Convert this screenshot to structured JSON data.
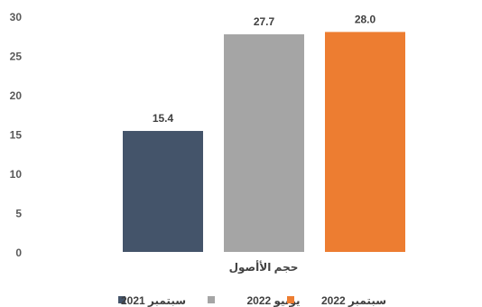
{
  "chart_data": {
    "type": "bar",
    "categories": [
      "حجم الأأصول"
    ],
    "series": [
      {
        "name": "سبتمبر 2021",
        "values": [
          15.4
        ],
        "color": "#44546A"
      },
      {
        "name": "يونيو 2022",
        "values": [
          27.7
        ],
        "color": "#A5A5A5"
      },
      {
        "name": "سبتمبر 2022",
        "values": [
          28.0
        ],
        "color": "#ED7D31"
      }
    ],
    "data_labels": [
      "15.4",
      "27.7",
      "28.0"
    ],
    "yticks": [
      "0",
      "5",
      "10",
      "15",
      "20",
      "25",
      "30"
    ],
    "ylim": [
      0,
      30
    ],
    "grid": false,
    "legend_position": "bottom",
    "title": "",
    "xlabel": "",
    "ylabel": ""
  }
}
